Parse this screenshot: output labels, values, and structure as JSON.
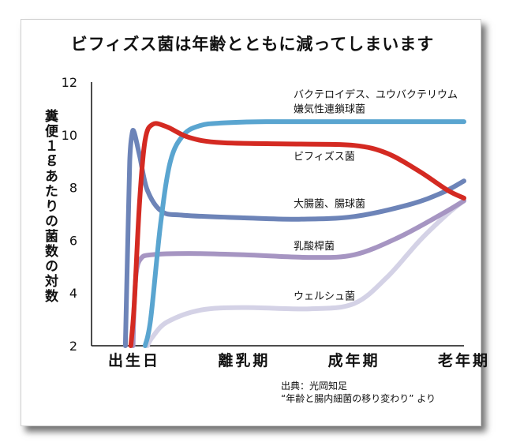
{
  "chart_data": {
    "type": "line",
    "title": "ビフィズス菌は年齢とともに減ってしまいます",
    "ylabel": "糞便１ｇあたりの菌数の対数",
    "ylim": [
      2,
      12
    ],
    "yticks": [
      "2",
      "4",
      "6",
      "8",
      "10",
      "12"
    ],
    "categories": [
      "出生日",
      "離乳期",
      "成年期",
      "老年期"
    ],
    "x_domain": [
      0,
      3
    ],
    "series": [
      {
        "name": "バクテロイデス、ユウバクテリウム 嫌気性連鎖球菌",
        "color": "#5aa5d0",
        "points": [
          [
            0.1,
            2.0
          ],
          [
            0.15,
            3.0
          ],
          [
            0.24,
            6.6
          ],
          [
            0.33,
            9.0
          ],
          [
            0.45,
            10.0
          ],
          [
            0.6,
            10.35
          ],
          [
            0.8,
            10.45
          ],
          [
            1.2,
            10.5
          ],
          [
            2.0,
            10.5
          ],
          [
            3.0,
            10.5
          ]
        ]
      },
      {
        "name": "ビフィズス菌",
        "color": "#d42a22",
        "points": [
          [
            -0.03,
            2.0
          ],
          [
            0.0,
            3.5
          ],
          [
            0.05,
            7.5
          ],
          [
            0.1,
            9.8
          ],
          [
            0.17,
            10.4
          ],
          [
            0.3,
            10.3
          ],
          [
            0.5,
            9.9
          ],
          [
            0.8,
            9.7
          ],
          [
            1.5,
            9.65
          ],
          [
            2.0,
            9.6
          ],
          [
            2.3,
            9.3
          ],
          [
            2.6,
            8.6
          ],
          [
            2.85,
            7.9
          ],
          [
            3.0,
            7.6
          ]
        ]
      },
      {
        "name": "大腸菌、腸球菌",
        "color": "#6d84b8",
        "points": [
          [
            -0.08,
            2.0
          ],
          [
            -0.06,
            5.5
          ],
          [
            -0.04,
            9.0
          ],
          [
            -0.02,
            10.0
          ],
          [
            0.0,
            10.1
          ],
          [
            0.05,
            9.2
          ],
          [
            0.12,
            7.9
          ],
          [
            0.25,
            7.1
          ],
          [
            0.45,
            6.95
          ],
          [
            1.0,
            6.85
          ],
          [
            1.5,
            6.8
          ],
          [
            2.0,
            6.9
          ],
          [
            2.5,
            7.35
          ],
          [
            2.8,
            7.8
          ],
          [
            3.0,
            8.25
          ]
        ]
      },
      {
        "name": "乳酸桿菌",
        "color": "#a695c2",
        "points": [
          [
            -0.01,
            2.0
          ],
          [
            0.0,
            3.5
          ],
          [
            0.02,
            4.8
          ],
          [
            0.06,
            5.3
          ],
          [
            0.15,
            5.45
          ],
          [
            0.5,
            5.5
          ],
          [
            1.0,
            5.45
          ],
          [
            1.6,
            5.35
          ],
          [
            2.0,
            5.45
          ],
          [
            2.4,
            6.1
          ],
          [
            2.8,
            7.0
          ],
          [
            3.0,
            7.5
          ]
        ]
      },
      {
        "name": "ウェルシュ菌",
        "color": "#d4d2e6",
        "points": [
          [
            0.12,
            2.0
          ],
          [
            0.17,
            2.35
          ],
          [
            0.3,
            2.9
          ],
          [
            0.6,
            3.35
          ],
          [
            1.0,
            3.45
          ],
          [
            1.6,
            3.4
          ],
          [
            2.0,
            3.6
          ],
          [
            2.3,
            4.6
          ],
          [
            2.6,
            6.0
          ],
          [
            2.85,
            7.0
          ],
          [
            3.0,
            7.5
          ]
        ]
      }
    ],
    "annotations": [
      {
        "text": "バクテロイデス、ユウバクテリウム",
        "x": 1.45,
        "y": 11.55
      },
      {
        "text": "嫌気性連鎖球菌",
        "x": 1.45,
        "y": 11.0
      },
      {
        "text": "ビフィズス菌",
        "x": 1.45,
        "y": 9.2
      },
      {
        "text": "大腸菌、腸球菌",
        "x": 1.45,
        "y": 7.4
      },
      {
        "text": "乳酸桿菌",
        "x": 1.45,
        "y": 5.8
      },
      {
        "text": "ウェルシュ菌",
        "x": 1.45,
        "y": 3.9
      }
    ]
  },
  "source": {
    "line1": "出典：光岡知足",
    "line2": "“年齢と腸内細菌の移り変わり” より"
  }
}
